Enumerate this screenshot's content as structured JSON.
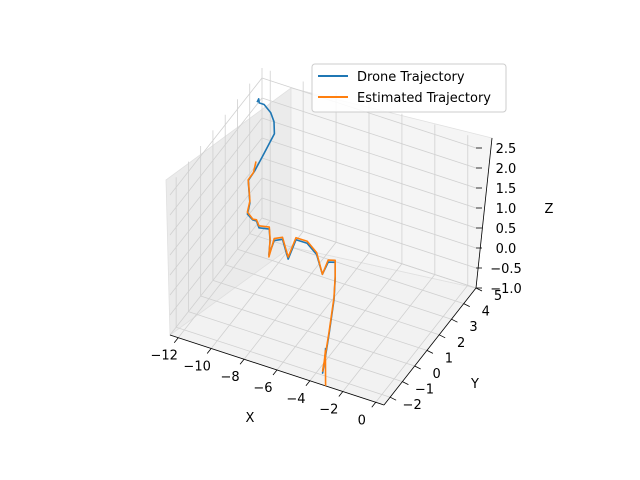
{
  "chart_data": {
    "type": "line",
    "projection": "3d",
    "title": "",
    "xlabel": "X",
    "ylabel": "Y",
    "zlabel": "Z",
    "xlim": [
      -12.5,
      0.5
    ],
    "ylim": [
      -2.5,
      5.0
    ],
    "zlim": [
      -1.0,
      2.75
    ],
    "x_ticks": [
      "−12",
      "−10",
      "−8",
      "−6",
      "−4",
      "−2",
      "0"
    ],
    "y_ticks": [
      "−2",
      "−1",
      "0",
      "1",
      "2",
      "3",
      "4",
      "5"
    ],
    "z_ticks": [
      "−1.0",
      "−0.5",
      "0.0",
      "0.5",
      "1.0",
      "1.5",
      "2.0",
      "2.5"
    ],
    "grid": true,
    "legend_position": "upper-right",
    "series": [
      {
        "name": "Drone Trajectory",
        "color": "#1f77b4",
        "points": [
          [
            -12.5,
            4.6,
            2.05
          ],
          [
            -12.4,
            4.6,
            2.15
          ],
          [
            -12.3,
            4.5,
            2.1
          ],
          [
            -12.0,
            4.5,
            2.1
          ],
          [
            -11.6,
            4.5,
            1.95
          ],
          [
            -11.4,
            4.5,
            1.75
          ],
          [
            -11.3,
            4.4,
            1.5
          ],
          [
            -11.5,
            3.8,
            1.2
          ],
          [
            -11.6,
            3.2,
            1.0
          ],
          [
            -11.7,
            2.8,
            0.9
          ],
          [
            -11.5,
            2.6,
            0.75
          ],
          [
            -11.3,
            2.4,
            0.55
          ],
          [
            -11.3,
            2.2,
            0.35
          ],
          [
            -10.9,
            2.1,
            0.3
          ],
          [
            -10.6,
            2.0,
            0.35
          ],
          [
            -10.3,
            1.8,
            0.3
          ],
          [
            -9.6,
            1.7,
            0.4
          ],
          [
            -9.4,
            1.5,
            0.2
          ],
          [
            -9.4,
            1.4,
            -0.1
          ],
          [
            -9.0,
            1.3,
            0.35
          ],
          [
            -8.5,
            1.3,
            0.45
          ],
          [
            -8.2,
            1.2,
            0.2
          ],
          [
            -8.0,
            1.1,
            0.1
          ],
          [
            -7.6,
            1.2,
            0.6
          ],
          [
            -7.0,
            1.3,
            0.55
          ],
          [
            -6.5,
            1.4,
            0.3
          ],
          [
            -6.0,
            1.2,
            -0.05
          ],
          [
            -5.5,
            1.0,
            0.4
          ],
          [
            -5.0,
            0.9,
            0.5
          ],
          [
            -4.7,
            0.5,
            0.3
          ],
          [
            -4.4,
            0.0,
            0.0
          ],
          [
            -4.1,
            -0.8,
            -0.5
          ],
          [
            -3.8,
            -1.5,
            -0.75
          ],
          [
            -3.6,
            -2.0,
            -0.95
          ],
          [
            -3.4,
            -2.2,
            -0.7
          ],
          [
            -3.2,
            -2.4,
            -0.5
          ],
          [
            -3.1,
            -2.45,
            -0.2
          ],
          [
            -3.05,
            -2.5,
            -0.05
          ]
        ]
      },
      {
        "name": "Estimated Trajectory",
        "color": "#ff7f0e",
        "points": [
          [
            -11.6,
            3.3,
            1.2
          ],
          [
            -11.6,
            3.1,
            1.0
          ],
          [
            -11.7,
            2.8,
            0.92
          ],
          [
            -11.5,
            2.6,
            0.8
          ],
          [
            -11.3,
            2.4,
            0.6
          ],
          [
            -11.3,
            2.2,
            0.4
          ],
          [
            -10.9,
            2.1,
            0.32
          ],
          [
            -10.6,
            2.0,
            0.38
          ],
          [
            -10.3,
            1.8,
            0.35
          ],
          [
            -9.6,
            1.7,
            0.45
          ],
          [
            -9.4,
            1.5,
            0.25
          ],
          [
            -9.4,
            1.4,
            -0.15
          ],
          [
            -9.0,
            1.3,
            0.4
          ],
          [
            -8.5,
            1.3,
            0.5
          ],
          [
            -8.2,
            1.2,
            0.25
          ],
          [
            -8.0,
            1.1,
            0.15
          ],
          [
            -7.6,
            1.2,
            0.65
          ],
          [
            -7.0,
            1.3,
            0.6
          ],
          [
            -6.5,
            1.4,
            0.35
          ],
          [
            -6.0,
            1.2,
            -0.05
          ],
          [
            -5.5,
            1.0,
            0.45
          ],
          [
            -5.0,
            0.9,
            0.55
          ],
          [
            -4.7,
            0.5,
            0.35
          ],
          [
            -4.4,
            0.0,
            0.05
          ],
          [
            -4.1,
            -0.8,
            -0.45
          ],
          [
            -3.8,
            -1.5,
            -0.7
          ],
          [
            -3.6,
            -2.0,
            -0.9
          ],
          [
            -3.4,
            -2.2,
            -0.65
          ],
          [
            -3.2,
            -2.4,
            -0.45
          ],
          [
            -3.1,
            -2.45,
            -0.15
          ],
          [
            -3.05,
            -2.5,
            -1.0
          ]
        ]
      }
    ]
  }
}
